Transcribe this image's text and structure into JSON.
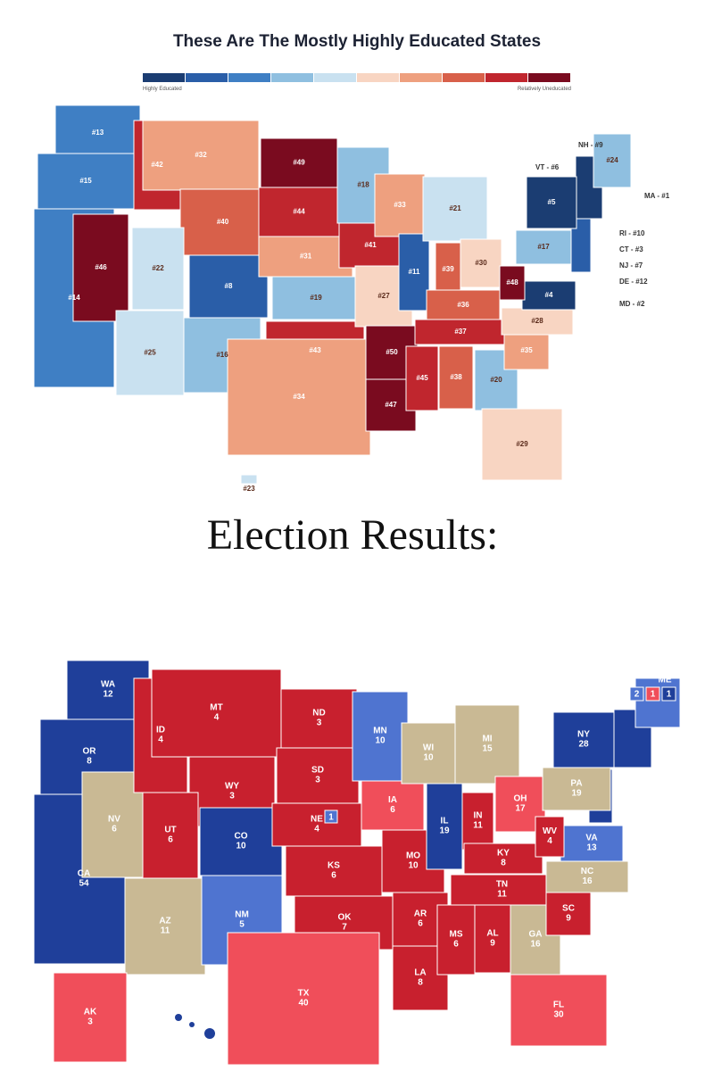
{
  "education_map": {
    "title": "These Are The Mostly Highly Educated States",
    "legend": {
      "low_label": "Highly Educated",
      "high_label": "Relatively Uneducated",
      "colors": [
        "#1b3d72",
        "#2a5ea8",
        "#3f7fc4",
        "#8fbfe0",
        "#c9e1f0",
        "#f8d5c2",
        "#eea07f",
        "#d8604a",
        "#c0262e",
        "#7a0b1f"
      ]
    },
    "states": [
      {
        "label": "#13",
        "color": "#3f7fc4"
      },
      {
        "label": "#15",
        "color": "#3f7fc4"
      },
      {
        "label": "#14",
        "color": "#3f7fc4"
      },
      {
        "label": "#46",
        "color": "#7a0b1f"
      },
      {
        "label": "#42",
        "color": "#c0262e"
      },
      {
        "label": "#32",
        "color": "#eea07f"
      },
      {
        "label": "#40",
        "color": "#d8604a"
      },
      {
        "label": "#22",
        "color": "#c9e1f0"
      },
      {
        "label": "#25",
        "color": "#c9e1f0"
      },
      {
        "label": "#8",
        "color": "#2a5ea8"
      },
      {
        "label": "#16",
        "color": "#8fbfe0"
      },
      {
        "label": "#49",
        "color": "#7a0b1f"
      },
      {
        "label": "#44",
        "color": "#c0262e"
      },
      {
        "label": "#31",
        "color": "#eea07f"
      },
      {
        "label": "#19",
        "color": "#8fbfe0"
      },
      {
        "label": "#43",
        "color": "#c0262e"
      },
      {
        "label": "#34",
        "color": "#eea07f"
      },
      {
        "label": "#18",
        "color": "#8fbfe0"
      },
      {
        "label": "#41",
        "color": "#c0262e"
      },
      {
        "label": "#27",
        "color": "#f8d5c2"
      },
      {
        "label": "#50",
        "color": "#7a0b1f"
      },
      {
        "label": "#47",
        "color": "#7a0b1f"
      },
      {
        "label": "#33",
        "color": "#eea07f"
      },
      {
        "label": "#11",
        "color": "#2a5ea8"
      },
      {
        "label": "#21",
        "color": "#c9e1f0"
      },
      {
        "label": "#39",
        "color": "#d8604a"
      },
      {
        "label": "#30",
        "color": "#f8d5c2"
      },
      {
        "label": "#36",
        "color": "#d8604a"
      },
      {
        "label": "#37",
        "color": "#c0262e"
      },
      {
        "label": "#45",
        "color": "#c0262e"
      },
      {
        "label": "#38",
        "color": "#d8604a"
      },
      {
        "label": "#20",
        "color": "#8fbfe0"
      },
      {
        "label": "#29",
        "color": "#f8d5c2"
      },
      {
        "label": "#35",
        "color": "#eea07f"
      },
      {
        "label": "#28",
        "color": "#f8d5c2"
      },
      {
        "label": "#4",
        "color": "#1b3d72"
      },
      {
        "label": "#48",
        "color": "#7a0b1f"
      },
      {
        "label": "#17",
        "color": "#8fbfe0"
      },
      {
        "label": "#5",
        "color": "#1b3d72"
      },
      {
        "label": "#24",
        "color": "#8fbfe0"
      },
      {
        "label": "#23",
        "color": "#c9e1f0"
      }
    ],
    "side_labels": [
      "NH - #9",
      "VT - #6",
      "MA - #1",
      "RI - #10",
      "CT - #3",
      "NJ - #7",
      "DE - #12",
      "MD - #2"
    ]
  },
  "election_heading": "Election Results:",
  "election_map": {
    "states": [
      {
        "abbr": "WA",
        "votes": 12,
        "color": "#1f3f9a"
      },
      {
        "abbr": "OR",
        "votes": 8,
        "color": "#1f3f9a"
      },
      {
        "abbr": "CA",
        "votes": 54,
        "color": "#1f3f9a"
      },
      {
        "abbr": "NV",
        "votes": 6,
        "color": "#c9b994"
      },
      {
        "abbr": "ID",
        "votes": 4,
        "color": "#c8202e"
      },
      {
        "abbr": "MT",
        "votes": 4,
        "color": "#c8202e"
      },
      {
        "abbr": "WY",
        "votes": 3,
        "color": "#c8202e"
      },
      {
        "abbr": "UT",
        "votes": 6,
        "color": "#c8202e"
      },
      {
        "abbr": "AZ",
        "votes": 11,
        "color": "#c9b994"
      },
      {
        "abbr": "CO",
        "votes": 10,
        "color": "#1f3f9a"
      },
      {
        "abbr": "NM",
        "votes": 5,
        "color": "#4f74d0"
      },
      {
        "abbr": "ND",
        "votes": 3,
        "color": "#c8202e"
      },
      {
        "abbr": "SD",
        "votes": 3,
        "color": "#c8202e"
      },
      {
        "abbr": "NE",
        "votes": 4,
        "color": "#c8202e"
      },
      {
        "abbr": "KS",
        "votes": 6,
        "color": "#c8202e"
      },
      {
        "abbr": "OK",
        "votes": 7,
        "color": "#c8202e"
      },
      {
        "abbr": "TX",
        "votes": 40,
        "color": "#f04e5a"
      },
      {
        "abbr": "MN",
        "votes": 10,
        "color": "#4f74d0"
      },
      {
        "abbr": "IA",
        "votes": 6,
        "color": "#f04e5a"
      },
      {
        "abbr": "MO",
        "votes": 10,
        "color": "#c8202e"
      },
      {
        "abbr": "AR",
        "votes": 6,
        "color": "#c8202e"
      },
      {
        "abbr": "LA",
        "votes": 8,
        "color": "#c8202e"
      },
      {
        "abbr": "WI",
        "votes": 10,
        "color": "#c9b994"
      },
      {
        "abbr": "IL",
        "votes": 19,
        "color": "#1f3f9a"
      },
      {
        "abbr": "MI",
        "votes": 15,
        "color": "#c9b994"
      },
      {
        "abbr": "IN",
        "votes": 11,
        "color": "#c8202e"
      },
      {
        "abbr": "OH",
        "votes": 17,
        "color": "#f04e5a"
      },
      {
        "abbr": "KY",
        "votes": 8,
        "color": "#c8202e"
      },
      {
        "abbr": "TN",
        "votes": 11,
        "color": "#c8202e"
      },
      {
        "abbr": "MS",
        "votes": 6,
        "color": "#c8202e"
      },
      {
        "abbr": "AL",
        "votes": 9,
        "color": "#c8202e"
      },
      {
        "abbr": "GA",
        "votes": 16,
        "color": "#c9b994"
      },
      {
        "abbr": "FL",
        "votes": 30,
        "color": "#f04e5a"
      },
      {
        "abbr": "SC",
        "votes": 9,
        "color": "#c8202e"
      },
      {
        "abbr": "NC",
        "votes": 16,
        "color": "#c9b994"
      },
      {
        "abbr": "VA",
        "votes": 13,
        "color": "#4f74d0"
      },
      {
        "abbr": "WV",
        "votes": 4,
        "color": "#c8202e"
      },
      {
        "abbr": "PA",
        "votes": 19,
        "color": "#c9b994"
      },
      {
        "abbr": "NY",
        "votes": 28,
        "color": "#1f3f9a"
      },
      {
        "abbr": "AK",
        "votes": 3,
        "color": "#f04e5a"
      }
    ],
    "nebraska_district": {
      "votes": 1,
      "color": "#4f74d0"
    },
    "maine": {
      "abbr": "ME",
      "districts": [
        {
          "votes": 2,
          "color": "#4f74d0"
        },
        {
          "votes": 1,
          "color": "#f04e5a"
        },
        {
          "votes": 1,
          "color": "#1f3f9a"
        }
      ]
    }
  }
}
